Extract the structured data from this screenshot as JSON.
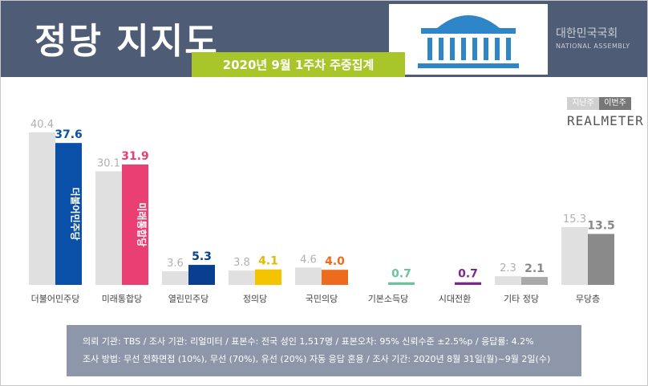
{
  "header": {
    "title": "정당 지지도",
    "subtitle": "2020년 9월 1주차 주중집계",
    "logo_name": "대한민국국회",
    "logo_eng": "NATIONAL ASSEMBLY",
    "color": "#4f5c75",
    "subtitle_color": "#a8c62a"
  },
  "legend": {
    "prev": "지난주",
    "curr": "이번주",
    "brand": "REALMETER"
  },
  "chart_data": {
    "type": "bar",
    "categories": [
      "더불어민주당",
      "미래통합당",
      "열린민주당",
      "정의당",
      "국민의당",
      "기본소득당",
      "시대전환",
      "기타 정당",
      "무당층"
    ],
    "series": [
      {
        "name": "지난주",
        "values": [
          40.4,
          30.1,
          3.6,
          3.8,
          4.6,
          null,
          null,
          2.3,
          15.3
        ]
      },
      {
        "name": "이번주",
        "values": [
          37.6,
          31.9,
          5.3,
          4.1,
          4.0,
          0.7,
          0.7,
          2.1,
          13.5
        ]
      }
    ],
    "prev_color": "#e0e0e0",
    "curr_colors": [
      "#0a4fa8",
      "#ea3f72",
      "#0a3f90",
      "#f5c400",
      "#ee6a1c",
      "#6cc49a",
      "#7a2a8c",
      "#a9a9a9",
      "#8a8a8a"
    ],
    "label_colors": [
      "#0a4fa8",
      "#ea3f72",
      "#0a3f90",
      "#e8b800",
      "#ee6a1c",
      "#6cc49a",
      "#7a2a8c",
      "#888888",
      "#888888"
    ],
    "prev_label_color": "#b0b0b0",
    "bar_texts": [
      "더불어민주당",
      "미래통합당"
    ],
    "ylim": [
      0,
      42
    ],
    "xlabel": "",
    "ylabel": ""
  },
  "footer": {
    "line1": "의뢰 기관: TBS / 조사 기관: 리얼미터 / 표본수: 전국 성인 1,517명 / 표본오차: 95% 신뢰수준 ±2.5%p / 응답률: 4.2%",
    "line2": "조사 방법: 무선 전화면접 (10%), 무선 (70%), 유선 (20%) 자동 응답 혼용 / 조사 기간: 2020년 8월 31일(월)~9월 2일(수)"
  }
}
